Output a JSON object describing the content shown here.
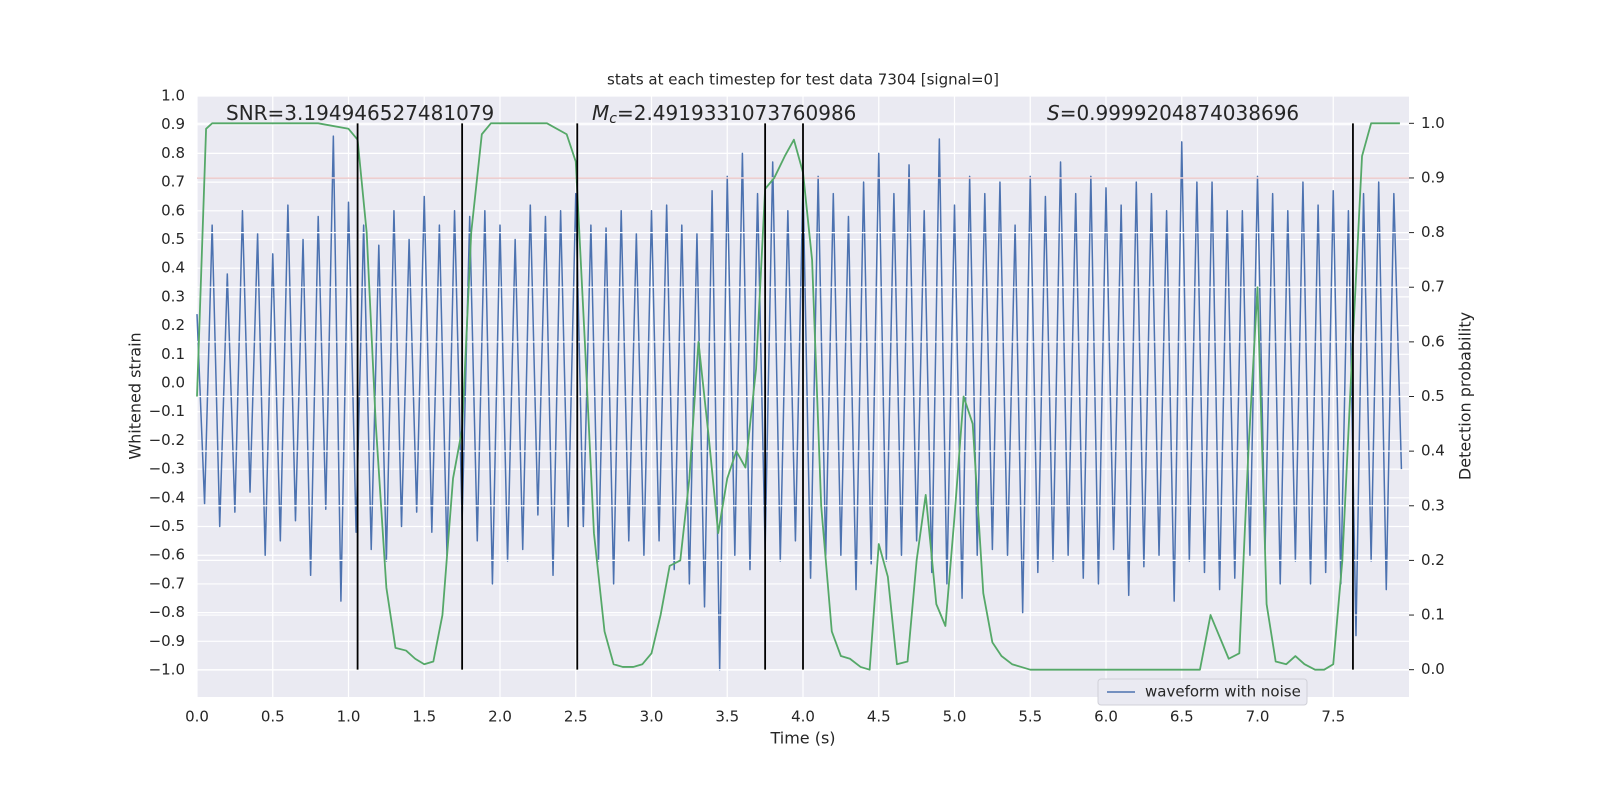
{
  "chart_data": {
    "type": "line",
    "title": "stats at each timestep for test data 7304 [signal=0]",
    "xlabel": "Time (s)",
    "ylabel": "Whitened strain",
    "y2label": "Detection probability",
    "annotations": [
      {
        "text": "SNR=3.194946527481079"
      },
      {
        "symbol": "M",
        "subscript": "c",
        "text": "=2.4919331073760986"
      },
      {
        "symbol": "S",
        "text": "=0.9999204874038696"
      }
    ],
    "xlim": [
      0,
      8
    ],
    "ylim": [
      -1.094,
      1.0
    ],
    "y2lim": [
      -0.05,
      1.05
    ],
    "grid": true,
    "legend": "lower right",
    "xticks": [
      {
        "value": 0,
        "label": "0.0"
      },
      0.5,
      {
        "value": 1,
        "label": "1.0"
      },
      1.5,
      {
        "value": 2,
        "label": "2.0"
      },
      2.5,
      {
        "value": 3,
        "label": "3.0"
      },
      3.5,
      {
        "value": 4,
        "label": "4.0"
      },
      4.5,
      {
        "value": 5,
        "label": "5.0"
      },
      5.5,
      {
        "value": 6,
        "label": "6.0"
      },
      6.5,
      {
        "value": 7,
        "label": "7.0"
      },
      7.5
    ],
    "yticks": [
      {
        "value": -1,
        "label": "−1.0"
      },
      {
        "value": -0.9,
        "label": "−0.9"
      },
      {
        "value": -0.8,
        "label": "−0.8"
      },
      {
        "value": -0.7,
        "label": "−0.7"
      },
      {
        "value": -0.6,
        "label": "−0.6"
      },
      {
        "value": -0.5,
        "label": "−0.5"
      },
      {
        "value": -0.4,
        "label": "−0.4"
      },
      {
        "value": -0.3,
        "label": "−0.3"
      },
      {
        "value": -0.2,
        "label": "−0.2"
      },
      {
        "value": -0.1,
        "label": "−0.1"
      },
      {
        "value": 0,
        "label": "0.0"
      },
      0.1,
      0.2,
      0.3,
      0.4,
      0.5,
      0.6,
      0.7,
      0.8,
      0.9,
      {
        "value": 1,
        "label": "1.0"
      }
    ],
    "y2ticks": [
      {
        "value": 0,
        "label": "0.0"
      },
      0.1,
      0.2,
      0.3,
      0.4,
      0.5,
      0.6,
      0.7,
      0.8,
      0.9,
      {
        "value": 1,
        "label": "1.0"
      }
    ],
    "series": [
      {
        "name": "waveform with noise",
        "color": "#4c72b0",
        "x": [
          0,
          0.05,
          0.1,
          0.15,
          0.2,
          0.25,
          0.3,
          0.35,
          0.4,
          0.45,
          0.5,
          0.55,
          0.6,
          0.65,
          0.7,
          0.75,
          0.8,
          0.85,
          0.9,
          0.95,
          1,
          1.05,
          1.1,
          1.15,
          1.2,
          1.25,
          1.3,
          1.35,
          1.4,
          1.45,
          1.5,
          1.55,
          1.6,
          1.65,
          1.7,
          1.75,
          1.8,
          1.85,
          1.9,
          1.95,
          2,
          2.05,
          2.1,
          2.15,
          2.2,
          2.25,
          2.3,
          2.35,
          2.4,
          2.45,
          2.5,
          2.55,
          2.6,
          2.65,
          2.7,
          2.75,
          2.8,
          2.85,
          2.9,
          2.95,
          3,
          3.05,
          3.1,
          3.15,
          3.2,
          3.25,
          3.3,
          3.35,
          3.4,
          3.45,
          3.5,
          3.55,
          3.6,
          3.65,
          3.7,
          3.75,
          3.8,
          3.85,
          3.9,
          3.95,
          4,
          4.05,
          4.1,
          4.15,
          4.2,
          4.25,
          4.3,
          4.35,
          4.4,
          4.45,
          4.5,
          4.55,
          4.6,
          4.65,
          4.7,
          4.75,
          4.8,
          4.85,
          4.9,
          4.95,
          5,
          5.05,
          5.1,
          5.15,
          5.2,
          5.25,
          5.3,
          5.35,
          5.4,
          5.45,
          5.5,
          5.55,
          5.6,
          5.65,
          5.7,
          5.75,
          5.8,
          5.85,
          5.9,
          5.95,
          6,
          6.05,
          6.1,
          6.15,
          6.2,
          6.25,
          6.3,
          6.35,
          6.4,
          6.45,
          6.5,
          6.55,
          6.6,
          6.65,
          6.7,
          6.75,
          6.8,
          6.85,
          6.9,
          6.95,
          7,
          7.05,
          7.1,
          7.15,
          7.2,
          7.25,
          7.3,
          7.35,
          7.4,
          7.45,
          7.5,
          7.55,
          7.6,
          7.65,
          7.7,
          7.75,
          7.8,
          7.85,
          7.9,
          7.95
        ],
        "values": [
          0.24,
          -0.42,
          0.55,
          -0.5,
          0.38,
          -0.45,
          0.6,
          -0.38,
          0.52,
          -0.6,
          0.45,
          -0.55,
          0.62,
          -0.48,
          0.5,
          -0.67,
          0.58,
          -0.44,
          0.86,
          -0.76,
          0.63,
          -0.52,
          0.55,
          -0.58,
          0.48,
          -0.62,
          0.6,
          -0.5,
          0.5,
          -0.45,
          0.65,
          -0.52,
          0.55,
          -0.6,
          0.6,
          -0.48,
          0.58,
          -0.55,
          0.6,
          -0.7,
          0.55,
          -0.62,
          0.5,
          -0.58,
          0.62,
          -0.46,
          0.58,
          -0.67,
          0.6,
          -0.5,
          0.66,
          -0.5,
          0.55,
          -0.62,
          0.54,
          -0.7,
          0.6,
          -0.55,
          0.52,
          -0.6,
          0.6,
          -0.55,
          0.62,
          -0.65,
          0.55,
          -0.7,
          0.52,
          -0.78,
          0.67,
          -1.0,
          0.72,
          -0.6,
          0.8,
          -0.65,
          0.66,
          -0.58,
          0.77,
          -0.62,
          0.6,
          -0.55,
          0.7,
          -0.68,
          0.72,
          -0.6,
          0.66,
          -0.6,
          0.58,
          -0.72,
          0.7,
          -0.63,
          0.8,
          -0.62,
          0.66,
          -0.6,
          0.76,
          -0.55,
          0.6,
          -0.66,
          0.85,
          -0.7,
          0.62,
          -0.75,
          0.72,
          -0.6,
          0.66,
          -0.58,
          0.7,
          -0.6,
          0.55,
          -0.8,
          0.72,
          -0.66,
          0.65,
          -0.62,
          0.77,
          -0.6,
          0.66,
          -0.68,
          0.72,
          -0.7,
          0.68,
          -0.58,
          0.62,
          -0.74,
          0.7,
          -0.64,
          0.66,
          -0.6,
          0.6,
          -0.76,
          0.84,
          -0.62,
          0.7,
          -0.66,
          0.7,
          -0.72,
          0.6,
          -0.68,
          0.6,
          -0.6,
          0.72,
          -0.58,
          0.66,
          -0.7,
          0.6,
          -0.62,
          0.7,
          -0.7,
          0.62,
          -0.66,
          0.67,
          -0.7,
          0.6,
          -0.88,
          0.66,
          -0.62,
          0.7,
          -0.72,
          0.66,
          -0.3
        ]
      },
      {
        "color": "#55a868",
        "axis": "y2",
        "x": [
          0,
          0.06,
          0.1,
          0.2,
          0.4,
          0.6,
          0.8,
          1.0,
          1.06,
          1.12,
          1.18,
          1.25,
          1.31,
          1.38,
          1.44,
          1.5,
          1.56,
          1.62,
          1.69,
          1.75,
          1.81,
          1.88,
          1.94,
          2.06,
          2.19,
          2.31,
          2.44,
          2.5,
          2.56,
          2.62,
          2.69,
          2.75,
          2.81,
          2.88,
          2.94,
          3.0,
          3.06,
          3.12,
          3.19,
          3.25,
          3.31,
          3.38,
          3.44,
          3.5,
          3.56,
          3.62,
          3.69,
          3.75,
          3.81,
          3.88,
          3.94,
          4.0,
          4.06,
          4.12,
          4.19,
          4.25,
          4.31,
          4.38,
          4.44,
          4.5,
          4.56,
          4.62,
          4.69,
          4.75,
          4.81,
          4.88,
          4.94,
          5.0,
          5.06,
          5.12,
          5.19,
          5.25,
          5.31,
          5.38,
          5.44,
          5.5,
          5.62,
          6.0,
          6.38,
          6.62,
          6.69,
          6.75,
          6.81,
          6.88,
          6.94,
          7.0,
          7.06,
          7.12,
          7.19,
          7.25,
          7.31,
          7.38,
          7.44,
          7.5,
          7.56,
          7.62,
          7.69,
          7.75,
          7.94
        ],
        "values": [
          0.5,
          0.99,
          1.0,
          1.0,
          1.0,
          1.0,
          1.0,
          0.99,
          0.97,
          0.8,
          0.45,
          0.15,
          0.04,
          0.035,
          0.02,
          0.01,
          0.015,
          0.1,
          0.35,
          0.44,
          0.8,
          0.98,
          1.0,
          1.0,
          1.0,
          1.0,
          0.98,
          0.93,
          0.6,
          0.25,
          0.07,
          0.01,
          0.005,
          0.005,
          0.01,
          0.03,
          0.1,
          0.19,
          0.2,
          0.35,
          0.6,
          0.42,
          0.25,
          0.35,
          0.4,
          0.37,
          0.55,
          0.88,
          0.9,
          0.94,
          0.97,
          0.91,
          0.75,
          0.3,
          0.07,
          0.025,
          0.02,
          0.005,
          0.0,
          0.23,
          0.17,
          0.01,
          0.015,
          0.2,
          0.32,
          0.12,
          0.08,
          0.28,
          0.5,
          0.45,
          0.14,
          0.05,
          0.025,
          0.01,
          0.005,
          0.0,
          0.0,
          0.0,
          0.0,
          0.0,
          0.1,
          0.06,
          0.02,
          0.03,
          0.4,
          0.7,
          0.12,
          0.015,
          0.01,
          0.025,
          0.01,
          0.0,
          0.0,
          0.01,
          0.2,
          0.55,
          0.94,
          1.0,
          1.0
        ]
      }
    ],
    "hlines": [
      {
        "y": 0.9,
        "axis": "y2",
        "color": "#c44e52"
      }
    ],
    "vlines": {
      "x": [
        1.06,
        1.75,
        2.51,
        3.75,
        4.0,
        7.63
      ],
      "ymin": 0,
      "ymax": 1,
      "axis": "y2",
      "color": "#000000"
    }
  }
}
